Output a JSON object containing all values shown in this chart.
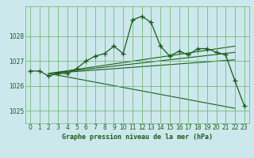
{
  "title": "Graphe pression niveau de la mer (hPa)",
  "bg_color": "#cce8ec",
  "grid_color": "#6ab36a",
  "line_color": "#1a5c1a",
  "xlim": [
    -0.5,
    23.5
  ],
  "ylim": [
    1024.5,
    1029.2
  ],
  "yticks": [
    1025,
    1026,
    1027,
    1028
  ],
  "xticks": [
    0,
    1,
    2,
    3,
    4,
    5,
    6,
    7,
    8,
    9,
    10,
    11,
    12,
    13,
    14,
    15,
    16,
    17,
    18,
    19,
    20,
    21,
    22,
    23
  ],
  "main_x": [
    0,
    1,
    2,
    3,
    4,
    5,
    6,
    7,
    8,
    9,
    10,
    11,
    12,
    13,
    14,
    15,
    16,
    17,
    18,
    19,
    20,
    21,
    22,
    23
  ],
  "main_y": [
    1026.6,
    1026.6,
    1026.4,
    1026.5,
    1026.5,
    1026.7,
    1027.0,
    1027.2,
    1027.3,
    1027.6,
    1027.3,
    1028.65,
    1028.8,
    1028.55,
    1027.6,
    1027.2,
    1027.4,
    1027.25,
    1027.5,
    1027.5,
    1027.35,
    1027.25,
    1026.2,
    1025.2
  ],
  "fan_lines": [
    {
      "x": [
        2,
        22
      ],
      "y": [
        1026.5,
        1025.1
      ]
    },
    {
      "x": [
        2,
        22
      ],
      "y": [
        1026.5,
        1027.05
      ]
    },
    {
      "x": [
        2,
        22
      ],
      "y": [
        1026.5,
        1027.35
      ]
    },
    {
      "x": [
        2,
        22
      ],
      "y": [
        1026.5,
        1027.6
      ]
    }
  ]
}
